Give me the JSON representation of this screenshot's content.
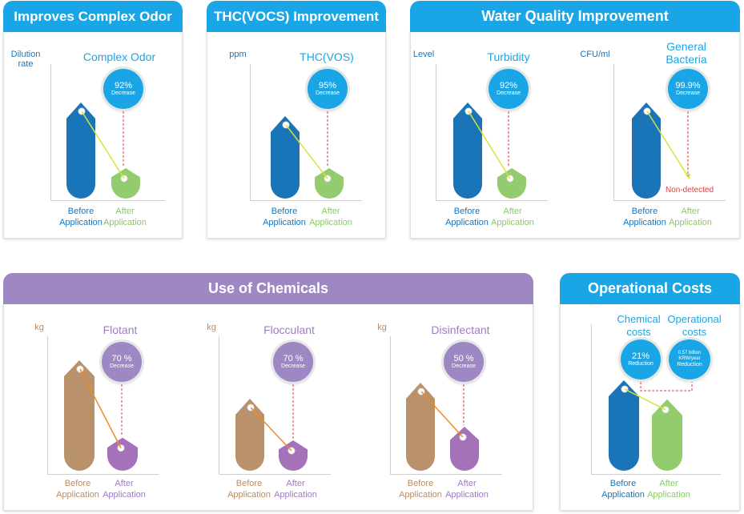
{
  "colors": {
    "blue_header": "#1aa6e6",
    "purple_header": "#9d88c3",
    "before_blue": "#1a74b8",
    "after_green": "#92cc6e",
    "before_tan": "#b9926c",
    "after_purple": "#a571b8",
    "red": "#e43b3b"
  },
  "sections": {
    "odor": {
      "header": "Improves Complex Odor"
    },
    "thc": {
      "header": "THC(VOCS) Improvement"
    },
    "water": {
      "header": "Water Quality Improvement"
    },
    "chem": {
      "header": "Use of Chemicals"
    },
    "cost": {
      "header": "Operational Costs"
    }
  },
  "labels": {
    "before": "Before",
    "after": "After",
    "application": "Application",
    "non_detected": "Non-detected"
  },
  "chart_data": [
    {
      "type": "bar",
      "title": "Complex Odor",
      "ylabel": "Dilution rate",
      "categories": [
        "Before Application",
        "After Application"
      ],
      "values": [
        100,
        8
      ],
      "change": {
        "value": "92%",
        "label": "Decrease"
      }
    },
    {
      "type": "bar",
      "title": "THC(VOS)",
      "ylabel": "ppm",
      "categories": [
        "Before Application",
        "After Application"
      ],
      "values": [
        100,
        5
      ],
      "change": {
        "value": "95%",
        "label": "Decrease"
      }
    },
    {
      "type": "bar",
      "title": "Turbidity",
      "ylabel": "Level",
      "categories": [
        "Before Application",
        "After Application"
      ],
      "values": [
        100,
        8
      ],
      "change": {
        "value": "92%",
        "label": "Decrease"
      }
    },
    {
      "type": "bar",
      "title": "General Bacteria",
      "ylabel": "CFU/ml",
      "categories": [
        "Before Application",
        "After Application"
      ],
      "values": [
        100,
        0.1
      ],
      "change": {
        "value": "99.9%",
        "label": "Decrease"
      },
      "after_note": "Non-detected"
    },
    {
      "type": "bar",
      "title": "Flotant",
      "ylabel": "kg",
      "categories": [
        "Before Application",
        "After Application"
      ],
      "values": [
        100,
        30
      ],
      "change": {
        "value": "70 %",
        "label": "Decrease"
      }
    },
    {
      "type": "bar",
      "title": "Flocculant",
      "ylabel": "kg",
      "categories": [
        "Before Application",
        "After Application"
      ],
      "values": [
        100,
        30
      ],
      "change": {
        "value": "70 %",
        "label": "Decrease"
      }
    },
    {
      "type": "bar",
      "title": "Disinfectant",
      "ylabel": "kg",
      "categories": [
        "Before Application",
        "After Application"
      ],
      "values": [
        100,
        50
      ],
      "change": {
        "value": "50 %",
        "label": "Decrease"
      }
    },
    {
      "type": "bar",
      "title": "Chemical costs",
      "title2": "Operational costs",
      "categories": [
        "Before Application",
        "After Application"
      ],
      "values": [
        100,
        79
      ],
      "change": {
        "value": "21%",
        "label": "Reduction"
      },
      "change2": {
        "value": "0.57 billion KRW/year",
        "label": "Reduction"
      }
    }
  ]
}
